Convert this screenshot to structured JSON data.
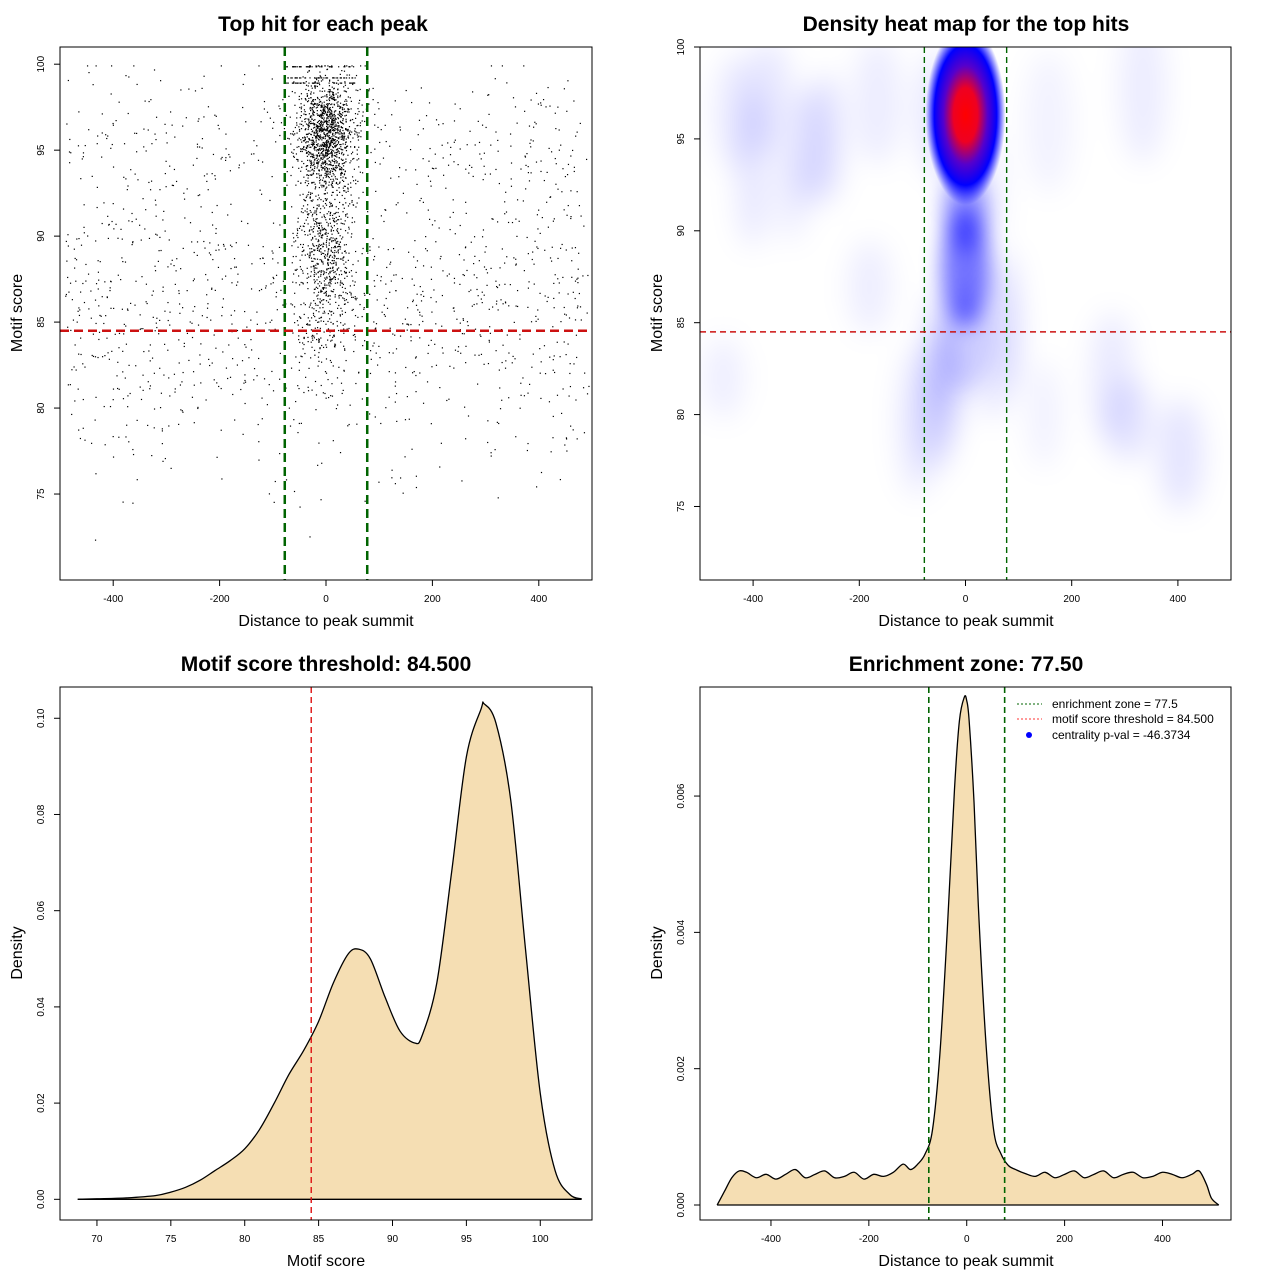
{
  "chart_data": [
    {
      "type": "scatter",
      "title": "Top hit for each peak",
      "xlabel": "Distance to peak summit",
      "ylabel": "Motif score",
      "xlim": [
        -500,
        500
      ],
      "ylim": [
        70,
        101
      ],
      "xticks": [
        -400,
        -200,
        0,
        200,
        400
      ],
      "yticks": [
        75,
        80,
        85,
        90,
        95,
        100
      ],
      "enrichment_zone_lines": [
        -77.5,
        77.5
      ],
      "threshold_line": 84.5,
      "line_colors": {
        "zone": "#006400",
        "threshold": "#cc1111"
      },
      "point_color": "#000000"
    },
    {
      "type": "heatmap",
      "title": "Density heat map for the top hits",
      "xlabel": "Distance to peak summit",
      "ylabel": "Motif score",
      "xlim": [
        -500,
        500
      ],
      "ylim": [
        71,
        100
      ],
      "xticks": [
        -400,
        -200,
        0,
        200,
        400
      ],
      "yticks": [
        75,
        80,
        85,
        90,
        95,
        100
      ],
      "enrichment_zone_lines": [
        -77.5,
        77.5
      ],
      "threshold_line": 84.5,
      "hotspot": {
        "x": 0,
        "y": 96.3
      },
      "colors": {
        "low": "#ffffff",
        "mid": "#0000ff",
        "high": "#ff0000"
      }
    },
    {
      "type": "area",
      "title": "Motif score threshold: 84.500",
      "xlabel": "Motif score",
      "ylabel": "Density",
      "xlim": [
        67.5,
        103.5
      ],
      "ylim": [
        -0.0043,
        0.1065
      ],
      "xticks": [
        70,
        75,
        80,
        85,
        90,
        95,
        100
      ],
      "yticks": [
        0.0,
        0.02,
        0.04,
        0.06,
        0.08,
        0.1
      ],
      "ytick_labels": [
        "0.00",
        "0.02",
        "0.04",
        "0.06",
        "0.08",
        "0.10"
      ],
      "threshold_line": 84.5,
      "fill_color": "#f5deb3",
      "x": [
        68.7,
        70,
        72,
        74,
        75,
        76,
        77,
        78,
        79,
        80,
        81,
        82,
        83,
        84,
        85,
        86,
        87,
        87.7,
        88.5,
        89.5,
        90.5,
        91.5,
        92,
        93,
        94,
        95,
        96,
        96.2,
        97,
        98,
        99,
        100,
        101,
        102,
        102.8
      ],
      "y": [
        0.0,
        0.0001,
        0.0003,
        0.0008,
        0.0015,
        0.0025,
        0.004,
        0.006,
        0.008,
        0.0105,
        0.0145,
        0.02,
        0.026,
        0.031,
        0.037,
        0.045,
        0.051,
        0.052,
        0.05,
        0.042,
        0.035,
        0.0325,
        0.034,
        0.045,
        0.068,
        0.092,
        0.102,
        0.103,
        0.099,
        0.083,
        0.052,
        0.022,
        0.006,
        0.001,
        0.0001
      ]
    },
    {
      "type": "area",
      "title": "Enrichment zone: 77.50",
      "xlabel": "Distance to peak summit",
      "ylabel": "Density",
      "xlim": [
        -545,
        540
      ],
      "ylim": [
        -0.00022,
        0.0076
      ],
      "xticks": [
        -400,
        -200,
        0,
        200,
        400
      ],
      "yticks": [
        0.0,
        0.002,
        0.004,
        0.006
      ],
      "ytick_labels": [
        "0.000",
        "0.002",
        "0.004",
        "0.006"
      ],
      "enrichment_zone_lines": [
        -77.5,
        77.5
      ],
      "fill_color": "#f5deb3",
      "x": [
        -510,
        -495,
        -480,
        -465,
        -450,
        -430,
        -410,
        -390,
        -370,
        -350,
        -330,
        -310,
        -290,
        -270,
        -250,
        -230,
        -210,
        -190,
        -170,
        -150,
        -130,
        -115,
        -100,
        -85,
        -70,
        -55,
        -40,
        -25,
        -15,
        -5,
        0,
        5,
        15,
        25,
        40,
        55,
        70,
        85,
        100,
        120,
        140,
        160,
        180,
        200,
        220,
        240,
        260,
        280,
        300,
        320,
        340,
        360,
        380,
        400,
        420,
        440,
        460,
        475,
        490,
        500,
        515
      ],
      "y": [
        0.0,
        0.0002,
        0.0004,
        0.0005,
        0.00048,
        0.0004,
        0.00045,
        0.00038,
        0.00045,
        0.00052,
        0.0004,
        0.00045,
        0.0005,
        0.0004,
        0.00042,
        0.00048,
        0.00038,
        0.00045,
        0.00042,
        0.00048,
        0.0006,
        0.00052,
        0.0006,
        0.00075,
        0.0011,
        0.0022,
        0.004,
        0.0061,
        0.0071,
        0.00745,
        0.0074,
        0.0071,
        0.0059,
        0.0042,
        0.0023,
        0.0011,
        0.00075,
        0.00058,
        0.00052,
        0.00046,
        0.00042,
        0.00048,
        0.0004,
        0.00045,
        0.0005,
        0.0004,
        0.00045,
        0.0005,
        0.0004,
        0.00045,
        0.00048,
        0.0004,
        0.00042,
        0.00048,
        0.00045,
        0.0004,
        0.00045,
        0.0005,
        0.0003,
        0.0001,
        0.0
      ],
      "legend": {
        "position": "top-right",
        "entries": [
          {
            "label": "enrichment zone = 77.5",
            "color": "#006400",
            "style": "dotted-line"
          },
          {
            "label": "motif score threshold = 84.500",
            "color": "#ff3333",
            "style": "dotted-line"
          },
          {
            "label": "centrality p-val = -46.3734",
            "color": "#0000ff",
            "style": "point"
          }
        ]
      }
    }
  ]
}
